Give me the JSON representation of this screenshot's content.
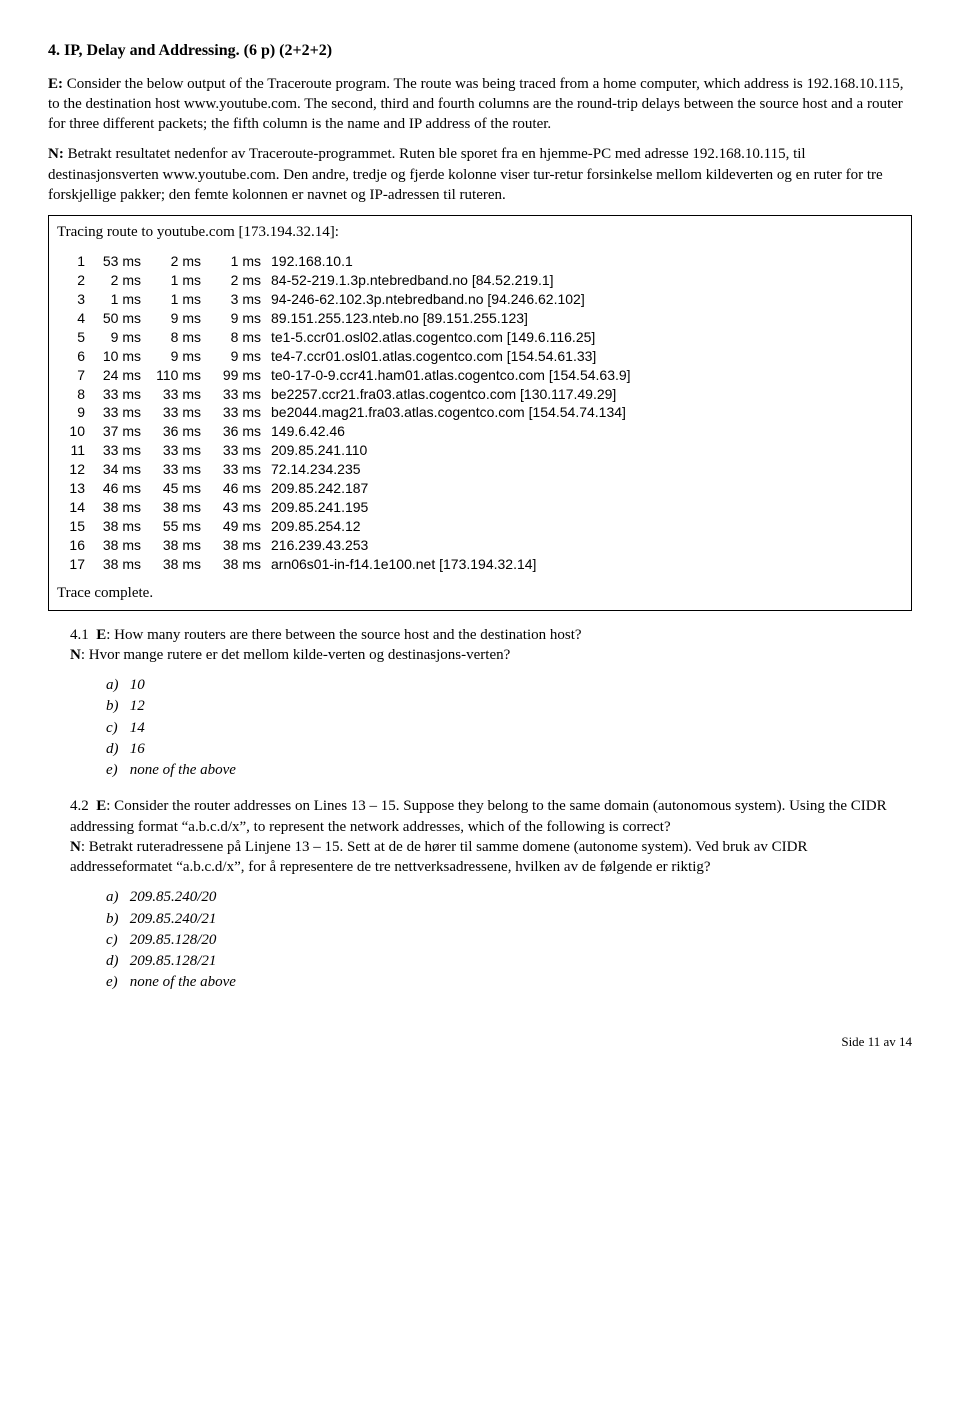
{
  "title": "4. IP, Delay and Addressing. (6 p) (2+2+2)",
  "para_e": "E: Consider the below output of the Traceroute program. The route was being traced from a home computer, which address is 192.168.10.115, to the destination host www.youtube.com. The second, third and  fourth columns are the round-trip delays between the source host and a router for three different packets; the fifth column is the name and IP address of the router.",
  "para_n1": "N: Betrakt resultatet nedenfor av Traceroute-programmet. Ruten ble sporet fra en hjemme-PC med adresse 192.168.10.115, til destinasjonsverten www.youtube.com. Den andre, tredje og fjerde kolonne viser tur-retur forsinkelse mellom kildeverten og en ruter for tre forskjellige pakker; den femte kolonnen er navnet og IP-adressen til ruteren.",
  "trace_header": "Tracing route to youtube.com [173.194.32.14]:",
  "trace": [
    {
      "hop": "1",
      "t1": "53 ms",
      "t2": "2 ms",
      "t3": "1 ms",
      "host": "192.168.10.1"
    },
    {
      "hop": "2",
      "t1": "2 ms",
      "t2": "1 ms",
      "t3": "2 ms",
      "host": "84-52-219.1.3p.ntebredband.no [84.52.219.1]"
    },
    {
      "hop": "3",
      "t1": "1 ms",
      "t2": "1 ms",
      "t3": "3 ms",
      "host": "94-246-62.102.3p.ntebredband.no [94.246.62.102]"
    },
    {
      "hop": "4",
      "t1": "50 ms",
      "t2": "9 ms",
      "t3": "9 ms",
      "host": "89.151.255.123.nteb.no [89.151.255.123]"
    },
    {
      "hop": "5",
      "t1": "9 ms",
      "t2": "8 ms",
      "t3": "8 ms",
      "host": "te1-5.ccr01.osl02.atlas.cogentco.com [149.6.116.25]"
    },
    {
      "hop": "6",
      "t1": "10 ms",
      "t2": "9 ms",
      "t3": "9 ms",
      "host": "te4-7.ccr01.osl01.atlas.cogentco.com [154.54.61.33]"
    },
    {
      "hop": "7",
      "t1": "24 ms",
      "t2": "110 ms",
      "t3": "99 ms",
      "host": "te0-17-0-9.ccr41.ham01.atlas.cogentco.com [154.54.63.9]"
    },
    {
      "hop": "8",
      "t1": "33 ms",
      "t2": "33 ms",
      "t3": "33 ms",
      "host": "be2257.ccr21.fra03.atlas.cogentco.com [130.117.49.29]"
    },
    {
      "hop": "9",
      "t1": "33 ms",
      "t2": "33 ms",
      "t3": "33 ms",
      "host": "be2044.mag21.fra03.atlas.cogentco.com [154.54.74.134]"
    },
    {
      "hop": "10",
      "t1": "37 ms",
      "t2": "36 ms",
      "t3": "36 ms",
      "host": "149.6.42.46"
    },
    {
      "hop": "11",
      "t1": "33 ms",
      "t2": "33 ms",
      "t3": "33 ms",
      "host": "209.85.241.110"
    },
    {
      "hop": "12",
      "t1": "34 ms",
      "t2": "33 ms",
      "t3": "33 ms",
      "host": "72.14.234.235"
    },
    {
      "hop": "13",
      "t1": "46 ms",
      "t2": "45 ms",
      "t3": "46 ms",
      "host": "209.85.242.187"
    },
    {
      "hop": "14",
      "t1": "38 ms",
      "t2": "38 ms",
      "t3": "43 ms",
      "host": "209.85.241.195"
    },
    {
      "hop": "15",
      "t1": "38 ms",
      "t2": "55 ms",
      "t3": "49 ms",
      "host": "209.85.254.12"
    },
    {
      "hop": "16",
      "t1": "38 ms",
      "t2": "38 ms",
      "t3": "38 ms",
      "host": "216.239.43.253"
    },
    {
      "hop": "17",
      "t1": "38 ms",
      "t2": "38 ms",
      "t3": "38 ms",
      "host": "arn06s01-in-f14.1e100.net [173.194.32.14]"
    }
  ],
  "trace_complete": "Trace complete.",
  "q41": {
    "num": "4.1",
    "e_label": "E",
    "e_text": ": How many routers are there between the source host and the destination host?",
    "n_label": "N",
    "n_text": ": Hvor mange rutere er det mellom kilde-verten og destinasjons-verten?",
    "opts": [
      {
        "l": "a)",
        "t": "10"
      },
      {
        "l": "b)",
        "t": "12"
      },
      {
        "l": "c)",
        "t": "14"
      },
      {
        "l": "d)",
        "t": "16"
      },
      {
        "l": "e)",
        "t": "none of the above"
      }
    ]
  },
  "q42": {
    "num": "4.2",
    "e_label": "E",
    "e_text": ": Consider the router addresses on Lines 13 – 15. Suppose they belong to the same domain (autonomous system). Using the CIDR addressing format “a.b.c.d/x”, to represent the network addresses, which of the following is correct?",
    "n_label": "N",
    "n_text": ": Betrakt ruteradressene på Linjene 13 – 15. Sett at de de hører til samme domene (autonome system). Ved bruk av  CIDR addresseformatet “a.b.c.d/x”, for å representere de tre nettverksadressene, hvilken av de følgende er riktig?",
    "opts": [
      {
        "l": "a)",
        "t": "209.85.240/20"
      },
      {
        "l": "b)",
        "t": "209.85.240/21"
      },
      {
        "l": "c)",
        "t": "209.85.128/20"
      },
      {
        "l": "d)",
        "t": "209.85.128/21"
      },
      {
        "l": "e)",
        "t": "none of the above"
      }
    ]
  },
  "footer": "Side 11 av 14"
}
